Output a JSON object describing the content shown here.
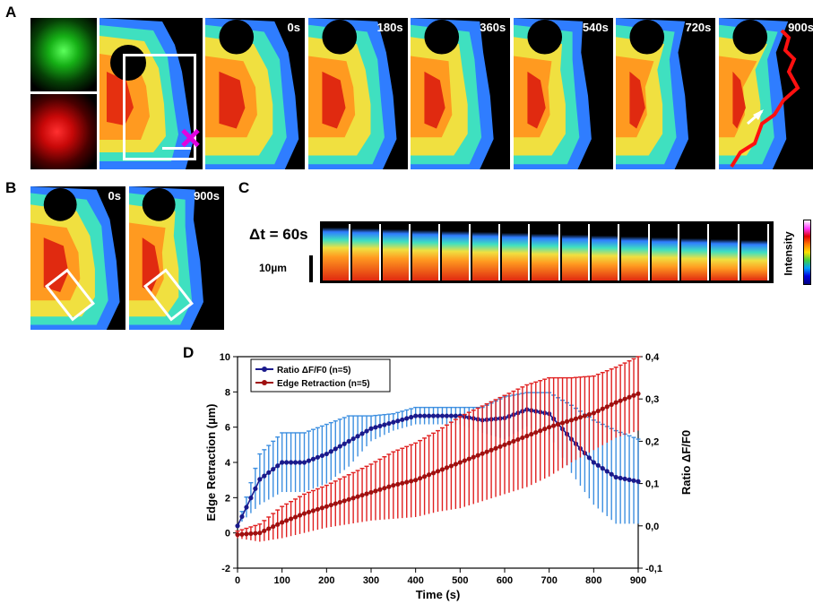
{
  "panels": {
    "a": "A",
    "b": "B",
    "c": "C",
    "d": "D"
  },
  "panel_a": {
    "channels": [
      "green-channel",
      "red-channel"
    ],
    "times": [
      "0s",
      "180s",
      "360s",
      "540s",
      "720s",
      "900s"
    ]
  },
  "panel_b": {
    "times": [
      "0s",
      "900s"
    ]
  },
  "panel_c": {
    "delta_t": "Δt = 60s",
    "scale_bar": "10µm",
    "colorbar_label": "Intensity",
    "colorbar_colors": [
      "#ffffff",
      "#ff3cff",
      "#e00000",
      "#ff7a00",
      "#ffe000",
      "#40d040",
      "#00a0ff",
      "#0000e0",
      "#000080"
    ],
    "kymo_frames": 15
  },
  "chart_data": {
    "type": "line",
    "xlabel": "Time (s)",
    "ylabel": "Edge Retraction (µm)",
    "y2label": "Ratio ΔF/F0",
    "xlim": [
      0,
      900
    ],
    "ylim": [
      -2,
      10
    ],
    "y2lim": [
      -0.1,
      0.4
    ],
    "x_ticks": [
      "0",
      "100",
      "200",
      "300",
      "400",
      "500",
      "600",
      "700",
      "800",
      "900"
    ],
    "y_ticks": [
      "-2",
      "0",
      "2",
      "4",
      "6",
      "8",
      "10"
    ],
    "y2_ticks": [
      "-0,1",
      "0,0",
      "0,1",
      "0,2",
      "0,3",
      "0,4"
    ],
    "legend_position": "top-left",
    "series": [
      {
        "name": "Ratio ΔF/F0 (n=5)",
        "axis": "right",
        "color": "#1a1a8c",
        "error_color": "#3d8fe0",
        "x": [
          0,
          50,
          100,
          150,
          200,
          250,
          300,
          350,
          400,
          450,
          500,
          550,
          600,
          650,
          700,
          750,
          800,
          850,
          900
        ],
        "y": [
          0.0,
          0.11,
          0.15,
          0.15,
          0.17,
          0.2,
          0.23,
          0.245,
          0.26,
          0.26,
          0.26,
          0.25,
          0.255,
          0.275,
          0.265,
          0.205,
          0.15,
          0.115,
          0.105
        ],
        "err": [
          0.0,
          0.06,
          0.07,
          0.07,
          0.07,
          0.06,
          0.03,
          0.02,
          0.02,
          0.02,
          0.02,
          0.03,
          0.05,
          0.04,
          0.05,
          0.08,
          0.1,
          0.11,
          0.1
        ]
      },
      {
        "name": "Edge Retraction (n=5)",
        "axis": "left",
        "color": "#a01010",
        "error_color": "#e02020",
        "x": [
          0,
          50,
          100,
          150,
          200,
          250,
          300,
          350,
          400,
          450,
          500,
          550,
          600,
          650,
          700,
          750,
          800,
          850,
          900
        ],
        "y": [
          -0.1,
          0.0,
          0.6,
          1.1,
          1.5,
          1.9,
          2.3,
          2.7,
          3.0,
          3.5,
          4.0,
          4.5,
          5.0,
          5.5,
          6.0,
          6.4,
          6.8,
          7.4,
          7.9
        ],
        "err": [
          0.2,
          0.5,
          0.9,
          1.1,
          1.2,
          1.4,
          1.6,
          1.9,
          2.1,
          2.3,
          2.6,
          2.7,
          2.8,
          2.9,
          2.8,
          2.4,
          2.1,
          2.0,
          2.1
        ]
      }
    ]
  }
}
